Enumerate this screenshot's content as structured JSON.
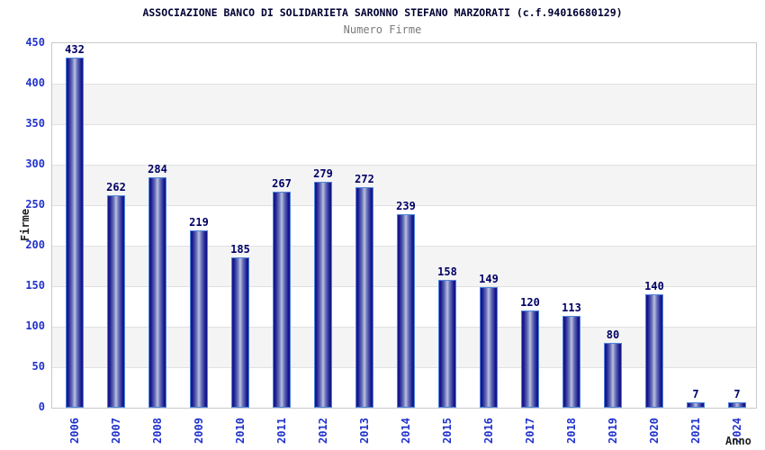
{
  "title": "ASSOCIAZIONE BANCO DI SOLIDARIETA SARONNO STEFANO MARZORATI (c.f.94016680129)",
  "subtitle": "Numero Firme",
  "chart_data": {
    "type": "bar",
    "title": "ASSOCIAZIONE BANCO DI SOLIDARIETA SARONNO STEFANO MARZORATI (c.f.94016680129)",
    "subtitle": "Numero Firme",
    "xlabel": "Anno",
    "ylabel": "Firme",
    "categories": [
      "2006",
      "2007",
      "2008",
      "2009",
      "2010",
      "2011",
      "2012",
      "2013",
      "2014",
      "2015",
      "2016",
      "2017",
      "2018",
      "2019",
      "2020",
      "2021",
      "2024"
    ],
    "values": [
      432,
      262,
      284,
      219,
      185,
      267,
      279,
      272,
      239,
      158,
      149,
      120,
      113,
      80,
      140,
      7,
      7
    ],
    "ylim": [
      0,
      450
    ],
    "ytick_step": 50,
    "grid": "horizontal-bands-alternating",
    "legend_position": "none",
    "bar_value_labels": true
  },
  "colors": {
    "background": "#ffffff",
    "title": "#000033",
    "subtitle": "#7a7a7a",
    "tick_label": "#2233cc",
    "value_label": "#000066",
    "axis_title": "#222222",
    "bar_dark": "#141487",
    "bar_light": "#bcc1de",
    "bar_border": "#4e85d9",
    "band_alt": "#f4f4f4",
    "grid_line": "#e0e0e0",
    "plot_border": "#c9c9c9"
  }
}
